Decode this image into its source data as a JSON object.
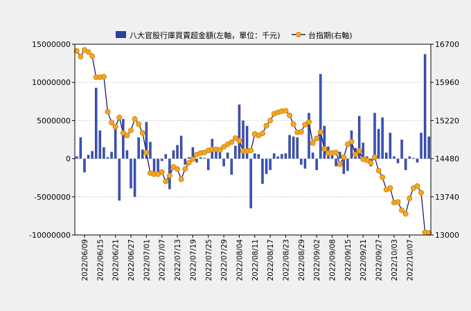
{
  "chart_data": {
    "type": "bar+line",
    "legend": {
      "position": "top-center"
    },
    "series": [
      {
        "name": "八大官股行庫買賣超金額(左軸，單位：千元)",
        "type": "bar",
        "axis": "left",
        "color": "#2a3f9c",
        "values": [
          300000,
          2800000,
          -1800000,
          500000,
          1000000,
          9300000,
          3700000,
          1500000,
          200000,
          900000,
          4300000,
          -5500000,
          5200000,
          1100000,
          -3900000,
          -5000000,
          2800000,
          1200000,
          4800000,
          2200000,
          -1800000,
          -2200000,
          -300000,
          600000,
          -4000000,
          1100000,
          1800000,
          3000000,
          -800000,
          200000,
          1500000,
          -500000,
          200000,
          100000,
          -1500000,
          2600000,
          1500000,
          900000,
          -1000000,
          800000,
          -2100000,
          1700000,
          7100000,
          5000000,
          4300000,
          -6500000,
          700000,
          600000,
          -3300000,
          -2000000,
          -1500000,
          700000,
          300000,
          600000,
          700000,
          3100000,
          2900000,
          2800000,
          -800000,
          -1300000,
          6000000,
          800000,
          -1500000,
          11100000,
          4300000,
          1600000,
          500000,
          -1000000,
          900000,
          -2000000,
          -1600000,
          3700000,
          1400000,
          5600000,
          2100000,
          300000,
          -1000000,
          6000000,
          3900000,
          5400000,
          800000,
          3400000,
          300000,
          -600000,
          2500000,
          -1500000,
          300000,
          100000,
          -500000,
          3400000,
          13700000,
          2900000
        ]
      },
      {
        "name": "台指期(右軸)",
        "type": "line",
        "axis": "right",
        "color": "#1a1a6e",
        "marker_color": "#f5a623",
        "values": [
          16570,
          16460,
          16590,
          16550,
          16470,
          16060,
          16060,
          16070,
          15390,
          15180,
          15100,
          15280,
          14980,
          14930,
          15030,
          15250,
          15150,
          14980,
          14600,
          14200,
          14180,
          14180,
          14220,
          14040,
          14150,
          14320,
          14280,
          14080,
          14280,
          14400,
          14470,
          14560,
          14590,
          14600,
          14640,
          14660,
          14660,
          14650,
          14710,
          14760,
          14800,
          14880,
          14830,
          14630,
          14630,
          14640,
          14960,
          14930,
          14970,
          15120,
          15220,
          15350,
          15380,
          15400,
          15410,
          15320,
          15150,
          14990,
          15000,
          15140,
          15190,
          14780,
          14870,
          15000,
          14670,
          14590,
          14590,
          14600,
          14370,
          14510,
          14760,
          14810,
          14560,
          14630,
          14470,
          14450,
          14400,
          14510,
          14250,
          14120,
          13880,
          13910,
          13630,
          13640,
          13480,
          13410,
          13710,
          13910,
          13950,
          13820,
          13050,
          13040
        ]
      }
    ],
    "x_tick_labels": [
      "2022/06/09",
      "2022/06/15",
      "2022/06/21",
      "2022/06/27",
      "2022/07/01",
      "2022/07/07",
      "2022/07/13",
      "2022/07/19",
      "2022/07/25",
      "2022/07/29",
      "2022/08/04",
      "2022/08/11",
      "2022/08/17",
      "2022/08/23",
      "2022/08/29",
      "2022/09/02",
      "2022/09/08",
      "2022/09/15",
      "2022/09/21",
      "2022/09/27",
      "2022/10/03",
      "2022/10/07"
    ],
    "x_tick_every": 4,
    "y_left": {
      "min": -10000000,
      "max": 15000000,
      "ticks": [
        -10000000,
        -5000000,
        0,
        5000000,
        10000000,
        15000000
      ]
    },
    "y_right": {
      "min": 13000,
      "max": 16700,
      "ticks": [
        13000,
        13740,
        14480,
        15220,
        15960,
        16700
      ]
    },
    "grid": "horizontal-dotted"
  }
}
